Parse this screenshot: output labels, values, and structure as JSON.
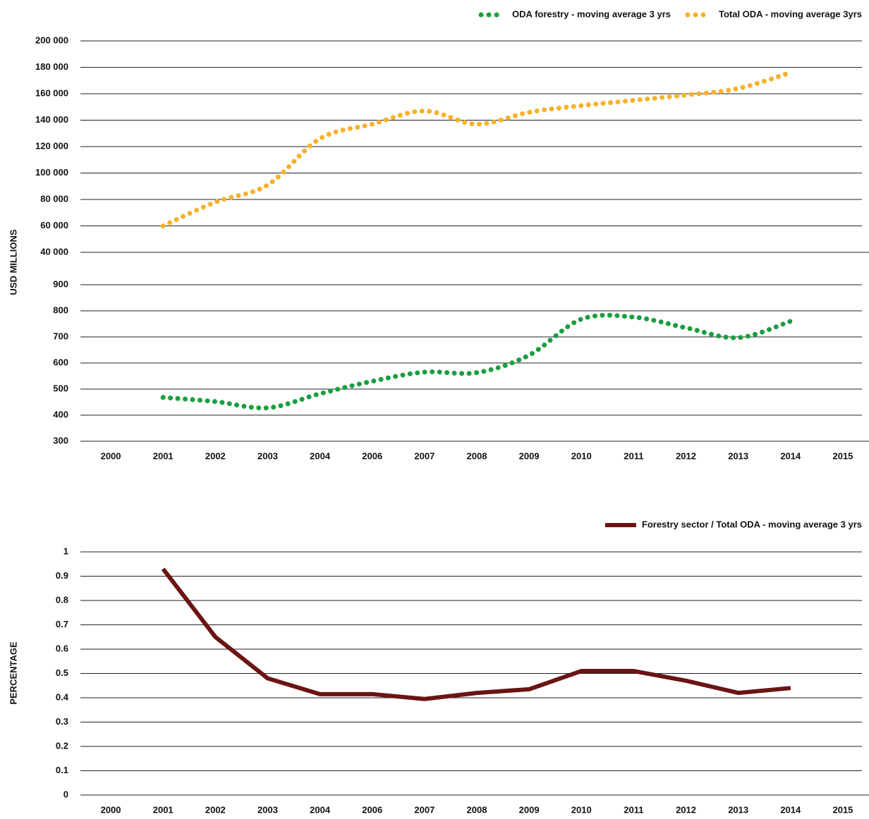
{
  "chart_data": [
    {
      "type": "line",
      "y_label": "USD MILLIONS",
      "line_style": "dotted",
      "categories": [
        "2000",
        "2001",
        "2002",
        "2003",
        "2004",
        "2006",
        "2007",
        "2008",
        "2009",
        "2010",
        "2011",
        "2012",
        "2013",
        "2014",
        "2015"
      ],
      "ylim": [
        300,
        900
      ],
      "yticks": [
        300,
        400,
        500,
        600,
        700,
        800,
        900
      ],
      "y2lim": [
        40000,
        200000
      ],
      "y2ticks": [
        {
          "value": 40000,
          "label": "40 000"
        },
        {
          "value": 60000,
          "label": "60 000"
        },
        {
          "value": 80000,
          "label": "80 000"
        },
        {
          "value": 100000,
          "label": "100 000"
        },
        {
          "value": 120000,
          "label": "120 000"
        },
        {
          "value": 140000,
          "label": "140 000"
        },
        {
          "value": 160000,
          "label": "160 000"
        },
        {
          "value": 180000,
          "label": "180 000"
        },
        {
          "value": 200000,
          "label": "200 000"
        }
      ],
      "series": [
        {
          "name": "ODA forestry - moving average 3 yrs",
          "color": "#1a9e3f",
          "values": [
            null,
            468,
            452,
            428,
            482,
            530,
            565,
            563,
            630,
            768,
            776,
            735,
            697,
            760,
            null
          ]
        },
        {
          "name": "Total ODA - moving average 3yrs",
          "color": "#f7b12b",
          "axis": "y2",
          "values": [
            null,
            60000,
            78000,
            91000,
            126000,
            137000,
            147000,
            137000,
            146000,
            151000,
            155000,
            159000,
            164000,
            176000,
            null
          ]
        }
      ]
    },
    {
      "type": "line",
      "y_label": "PERCENTAGE",
      "categories": [
        "2000",
        "2001",
        "2002",
        "2003",
        "2004",
        "2006",
        "2007",
        "2008",
        "2009",
        "2010",
        "2011",
        "2012",
        "2013",
        "2014",
        "2015"
      ],
      "ylim": [
        0,
        1
      ],
      "yticks": [
        0,
        0.1,
        0.2,
        0.3,
        0.4,
        0.5,
        0.6,
        0.7,
        0.8,
        0.9,
        1
      ],
      "series": [
        {
          "name": "Forestry sector / Total ODA - moving average 3 yrs",
          "color": "#6b1414",
          "values": [
            null,
            0.93,
            0.65,
            0.48,
            0.415,
            0.415,
            0.395,
            0.42,
            0.435,
            0.51,
            0.51,
            0.47,
            0.42,
            0.44,
            null
          ]
        }
      ]
    }
  ]
}
